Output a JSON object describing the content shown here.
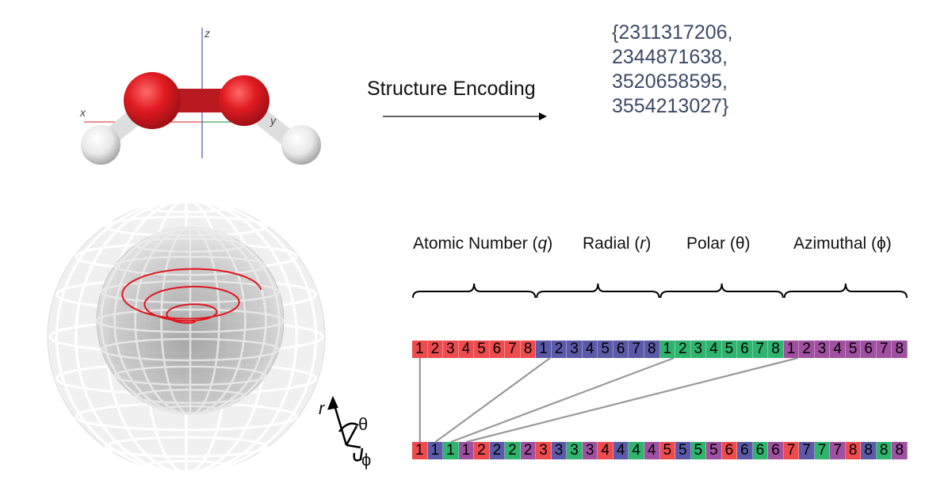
{
  "molecule": {
    "axes": {
      "x": "x",
      "y": "y",
      "z": "z"
    }
  },
  "encoding": {
    "label": "Structure Encoding",
    "codes": [
      "{2311317206,",
      "2344871638,",
      "3520658595,",
      "3554213027}"
    ]
  },
  "fields": [
    {
      "label": "Atomic Number (",
      "var": "q",
      "close": ")",
      "color": "#ee4b4f"
    },
    {
      "label": "Radial (",
      "var": "r",
      "close": ")",
      "color": "#5a5aa8"
    },
    {
      "label": "Polar (θ)",
      "var": "",
      "close": "",
      "color": "#2fb46e"
    },
    {
      "label": "Azimuthal (ϕ)",
      "var": "",
      "close": "",
      "color": "#a050a0"
    }
  ],
  "bits": [
    "1",
    "2",
    "3",
    "4",
    "5",
    "6",
    "7",
    "8"
  ],
  "coords": {
    "r": "r",
    "theta": "θ",
    "phi": "ϕ"
  }
}
